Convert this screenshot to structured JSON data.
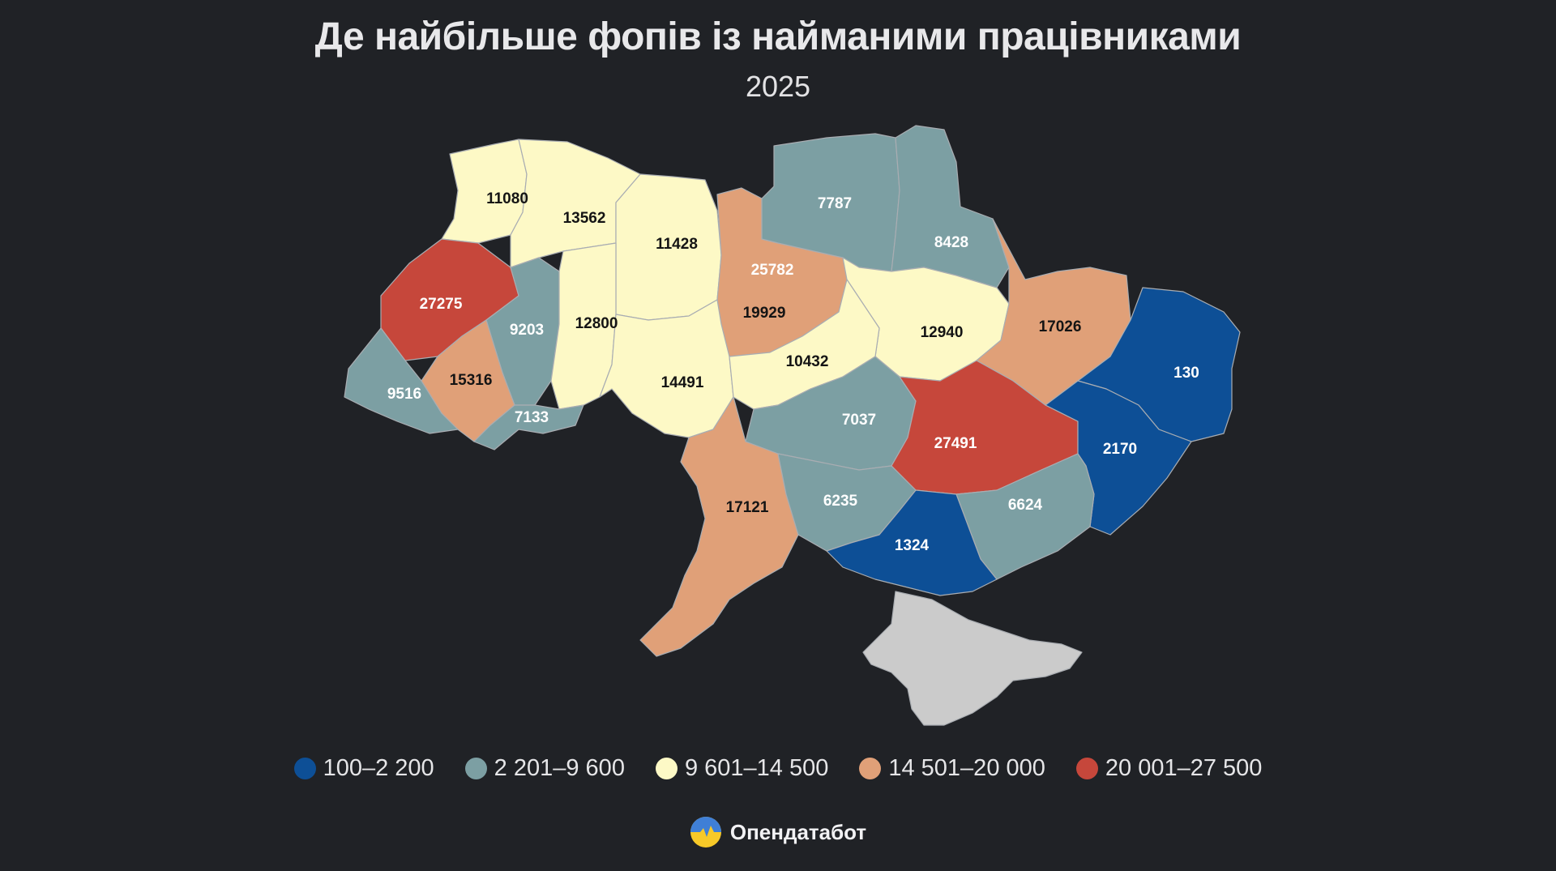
{
  "header": {
    "title": "Де найбільше фопів із найманими працівниками",
    "subtitle": "2025"
  },
  "colors": {
    "background": "#202226",
    "bin1": "#0d4f96",
    "bin2": "#7c9fa3",
    "bin3": "#fdf9c6",
    "bin4": "#e0a078",
    "bin5": "#c6473b",
    "crimea": "#cbcbcb"
  },
  "legend": [
    {
      "label": "100–2 200",
      "color": "#0d4f96"
    },
    {
      "label": "2 201–9 600",
      "color": "#7c9fa3"
    },
    {
      "label": "9 601–14 500",
      "color": "#fdf9c6"
    },
    {
      "label": "14 501–20 000",
      "color": "#e0a078"
    },
    {
      "label": "20 001–27 500",
      "color": "#c6473b"
    }
  ],
  "regions": [
    {
      "value": "11080",
      "bin": 3
    },
    {
      "value": "13562",
      "bin": 3
    },
    {
      "value": "11428",
      "bin": 3
    },
    {
      "value": "25782",
      "bin": 5
    },
    {
      "value": "19929",
      "bin": 4
    },
    {
      "value": "7787",
      "bin": 2
    },
    {
      "value": "8428",
      "bin": 2
    },
    {
      "value": "27275",
      "bin": 5
    },
    {
      "value": "9203",
      "bin": 2
    },
    {
      "value": "12800",
      "bin": 3
    },
    {
      "value": "12940",
      "bin": 3
    },
    {
      "value": "17026",
      "bin": 4
    },
    {
      "value": "130",
      "bin": 1
    },
    {
      "value": "9516",
      "bin": 2
    },
    {
      "value": "15316",
      "bin": 4
    },
    {
      "value": "7133",
      "bin": 2
    },
    {
      "value": "14491",
      "bin": 3
    },
    {
      "value": "10432",
      "bin": 3
    },
    {
      "value": "7037",
      "bin": 2
    },
    {
      "value": "27491",
      "bin": 5
    },
    {
      "value": "2170",
      "bin": 1
    },
    {
      "value": "17121",
      "bin": 4
    },
    {
      "value": "6235",
      "bin": 2
    },
    {
      "value": "6624",
      "bin": 2
    },
    {
      "value": "1324",
      "bin": 1
    }
  ],
  "brand": {
    "name": "Опендатабот",
    "logo_icon": "opendatabot-logo-icon"
  }
}
